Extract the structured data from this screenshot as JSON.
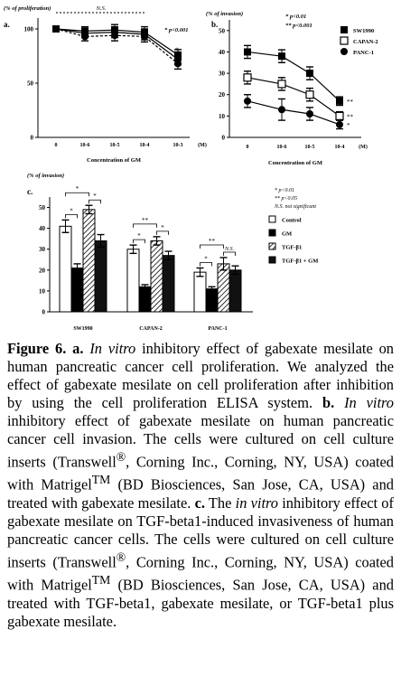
{
  "chart_data": [
    {
      "type": "line",
      "panel_label": "a.",
      "ylabel": "(% of proliferation)",
      "xlabel": "Concentration of GM",
      "x_unit": "(M)",
      "categories": [
        "0",
        "10-6",
        "10-5",
        "10-4",
        "10-3"
      ],
      "yticks": [
        "0",
        "50",
        "100"
      ],
      "ylim": [
        0,
        110
      ],
      "significance_label": "N.S.",
      "p_annotation": "* p<0.001",
      "star": "*",
      "series": [
        {
          "values": [
            100,
            96,
            97,
            95,
            72
          ],
          "err": [
            2,
            4,
            5,
            5,
            5
          ],
          "marker": "circle-filled"
        },
        {
          "values": [
            100,
            93,
            94,
            93,
            68
          ],
          "err": [
            2,
            4,
            5,
            5,
            5
          ],
          "marker": "circle-filled"
        },
        {
          "values": [
            100,
            98,
            99,
            97,
            76
          ],
          "err": [
            2,
            4,
            5,
            5,
            5
          ],
          "marker": "square-filled"
        }
      ]
    },
    {
      "type": "line",
      "panel_label": "b.",
      "ylabel": "(% of invasion)",
      "xlabel": "Concentration of GM",
      "x_unit": "(M)",
      "categories": [
        "0",
        "10-6",
        "10-5",
        "10-4"
      ],
      "yticks": [
        "0",
        "10",
        "20",
        "30",
        "40",
        "50"
      ],
      "ylim": [
        0,
        55
      ],
      "p_annotations": [
        "* p<0.01",
        "** p<0.001"
      ],
      "point_marks": [
        "**",
        "**",
        "*"
      ],
      "series": [
        {
          "name": "SW1990",
          "marker": "square-filled",
          "values": [
            40,
            38,
            30,
            17
          ],
          "err": [
            3,
            3,
            3,
            2
          ]
        },
        {
          "name": "CAPAN-2",
          "marker": "square-open",
          "values": [
            28,
            25,
            20,
            10
          ],
          "err": [
            3,
            3,
            3,
            2
          ]
        },
        {
          "name": "PANC-1",
          "marker": "circle-filled",
          "values": [
            17,
            13,
            11,
            6
          ],
          "err": [
            3,
            5,
            3,
            2
          ]
        }
      ]
    },
    {
      "type": "bar",
      "panel_label": "c.",
      "ylabel": "(% of invasion)",
      "categories": [
        "SW1990",
        "CAPAN-2",
        "PANC-1"
      ],
      "yticks": [
        "0",
        "10",
        "20",
        "30",
        "40",
        "50"
      ],
      "ylim": [
        0,
        55
      ],
      "legend_notes": [
        "* p<0.01",
        "** p<0.05",
        "N.S. not significant"
      ],
      "series": [
        {
          "name": "Control",
          "pattern": "open",
          "values": [
            41,
            30,
            19
          ],
          "err": [
            3,
            2,
            2
          ]
        },
        {
          "name": "GM",
          "pattern": "solid",
          "values": [
            21,
            12,
            11
          ],
          "err": [
            2,
            1,
            1
          ]
        },
        {
          "name": "TGF-β1",
          "pattern": "hatched",
          "values": [
            49,
            34,
            23
          ],
          "err": [
            2,
            2,
            3
          ]
        },
        {
          "name": "TGF-β1 + GM",
          "pattern": "solid-dark",
          "values": [
            34,
            27,
            20
          ],
          "err": [
            3,
            2,
            2
          ]
        }
      ],
      "brackets": [
        {
          "group": 0,
          "from": 0,
          "to": 1,
          "label": "*"
        },
        {
          "group": 0,
          "from": 0,
          "to": 2,
          "label": "*"
        },
        {
          "group": 0,
          "from": 2,
          "to": 3,
          "label": "*"
        },
        {
          "group": 1,
          "from": 0,
          "to": 1,
          "label": "*"
        },
        {
          "group": 1,
          "from": 0,
          "to": 2,
          "label": "**"
        },
        {
          "group": 1,
          "from": 2,
          "to": 3,
          "label": "*"
        },
        {
          "group": 2,
          "from": 0,
          "to": 1,
          "label": "*"
        },
        {
          "group": 2,
          "from": 0,
          "to": 2,
          "label": "**"
        },
        {
          "group": 2,
          "from": 2,
          "to": 3,
          "label": "N.S."
        }
      ]
    }
  ],
  "caption": {
    "fig_label": "Figure 6.",
    "a_label": "a.",
    "in_vitro": "In vitro",
    "a_text": "inhibitory effect of gabexate mesilate on human pancreatic cancer cell proliferation. We analyzed the effect of gabexate mesilate on cell proliferation after inhibition by using the cell proliferation ELISA system.",
    "b_label": "b.",
    "b_text": "inhibitory effect of gabexate mesilate on human pancreatic cancer cell invasion. The cells were cultured on cell culture inserts (Transwell",
    "reg": "®",
    "corning": ", Corning Inc., Corning, NY, USA) coated with Matrigel",
    "tm": "TM",
    "bd1": " (BD Biosciences, San Jose, CA, USA) and treated with gabexate mesilate.",
    "c_label": "c.",
    "c_intro": "The",
    "in_vitro_lower": "in vitro",
    "c_text": "inhibitory effect of gabexate mesilate on TGF-beta1-induced invasiveness of human pancreatic cancer cells. The cells were cultured on cell culture inserts (Transwell",
    "bd2": " (BD Biosciences, San Jose, CA, USA) and treated with TGF-beta1, gabexate mesilate, or TGF-beta1 plus gabexate mesilate."
  }
}
